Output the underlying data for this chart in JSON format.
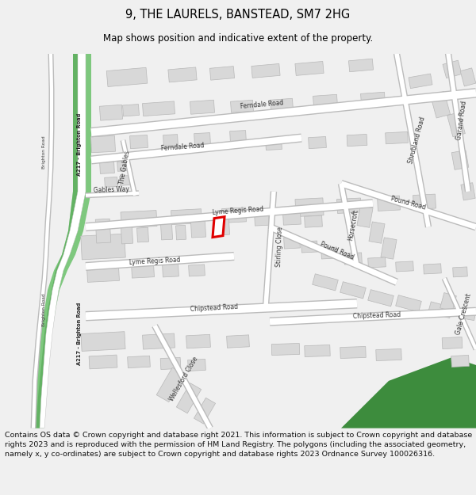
{
  "title_line1": "9, THE LAURELS, BANSTEAD, SM7 2HG",
  "title_line2": "Map shows position and indicative extent of the property.",
  "copyright_text": "Contains OS data © Crown copyright and database right 2021. This information is subject to Crown copyright and database rights 2023 and is reproduced with the permission of HM Land Registry. The polygons (including the associated geometry, namely x, y co-ordinates) are subject to Crown copyright and database rights 2023 Ordnance Survey 100026316.",
  "bg_color": "#f0f0f0",
  "map_bg": "#ffffff",
  "bld_fill": "#d8d8d8",
  "bld_edge": "#b8b8b8",
  "road_fill": "#ffffff",
  "road_edge": "#bbbbbb",
  "green1": "#7ec87e",
  "green2": "#4a9e4a",
  "green3": "#3d8c3d",
  "red_col": "#e00000",
  "title_fs": 10.5,
  "sub_fs": 8.5,
  "copy_fs": 6.8,
  "road_label_fs": 5.5,
  "road_label_color": "#333333"
}
